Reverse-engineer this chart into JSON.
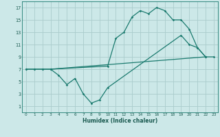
{
  "bg_color": "#cce8e8",
  "grid_color": "#aacccc",
  "line_color": "#1a7a6e",
  "xlim": [
    -0.5,
    23.5
  ],
  "ylim": [
    0.0,
    18.0
  ],
  "xticks": [
    0,
    1,
    2,
    3,
    4,
    5,
    6,
    7,
    8,
    9,
    10,
    11,
    12,
    13,
    14,
    15,
    16,
    17,
    18,
    19,
    20,
    21,
    22,
    23
  ],
  "yticks": [
    1,
    3,
    5,
    7,
    9,
    11,
    13,
    15,
    17
  ],
  "xlabel": "Humidex (Indice chaleur)",
  "line1_x": [
    0,
    1,
    2,
    3,
    10,
    11,
    12,
    13,
    14,
    15,
    16,
    17,
    18,
    19,
    20,
    21,
    22
  ],
  "line1_y": [
    7,
    7,
    7,
    7,
    7.5,
    12,
    13,
    15.5,
    16.5,
    16,
    17,
    16.5,
    15,
    15,
    13.5,
    10.5,
    9
  ],
  "line2_x": [
    0,
    1,
    2,
    3,
    22,
    23
  ],
  "line2_y": [
    7,
    7,
    7,
    7,
    9,
    9
  ],
  "line3_x": [
    3,
    4,
    5,
    6,
    7,
    8,
    9,
    10,
    19,
    20,
    21,
    22
  ],
  "line3_y": [
    7,
    6,
    4.5,
    5.5,
    3,
    1.5,
    2,
    4,
    12.5,
    11,
    10.5,
    9
  ],
  "marker": "D",
  "markersize": 1.8,
  "linewidth": 0.9
}
